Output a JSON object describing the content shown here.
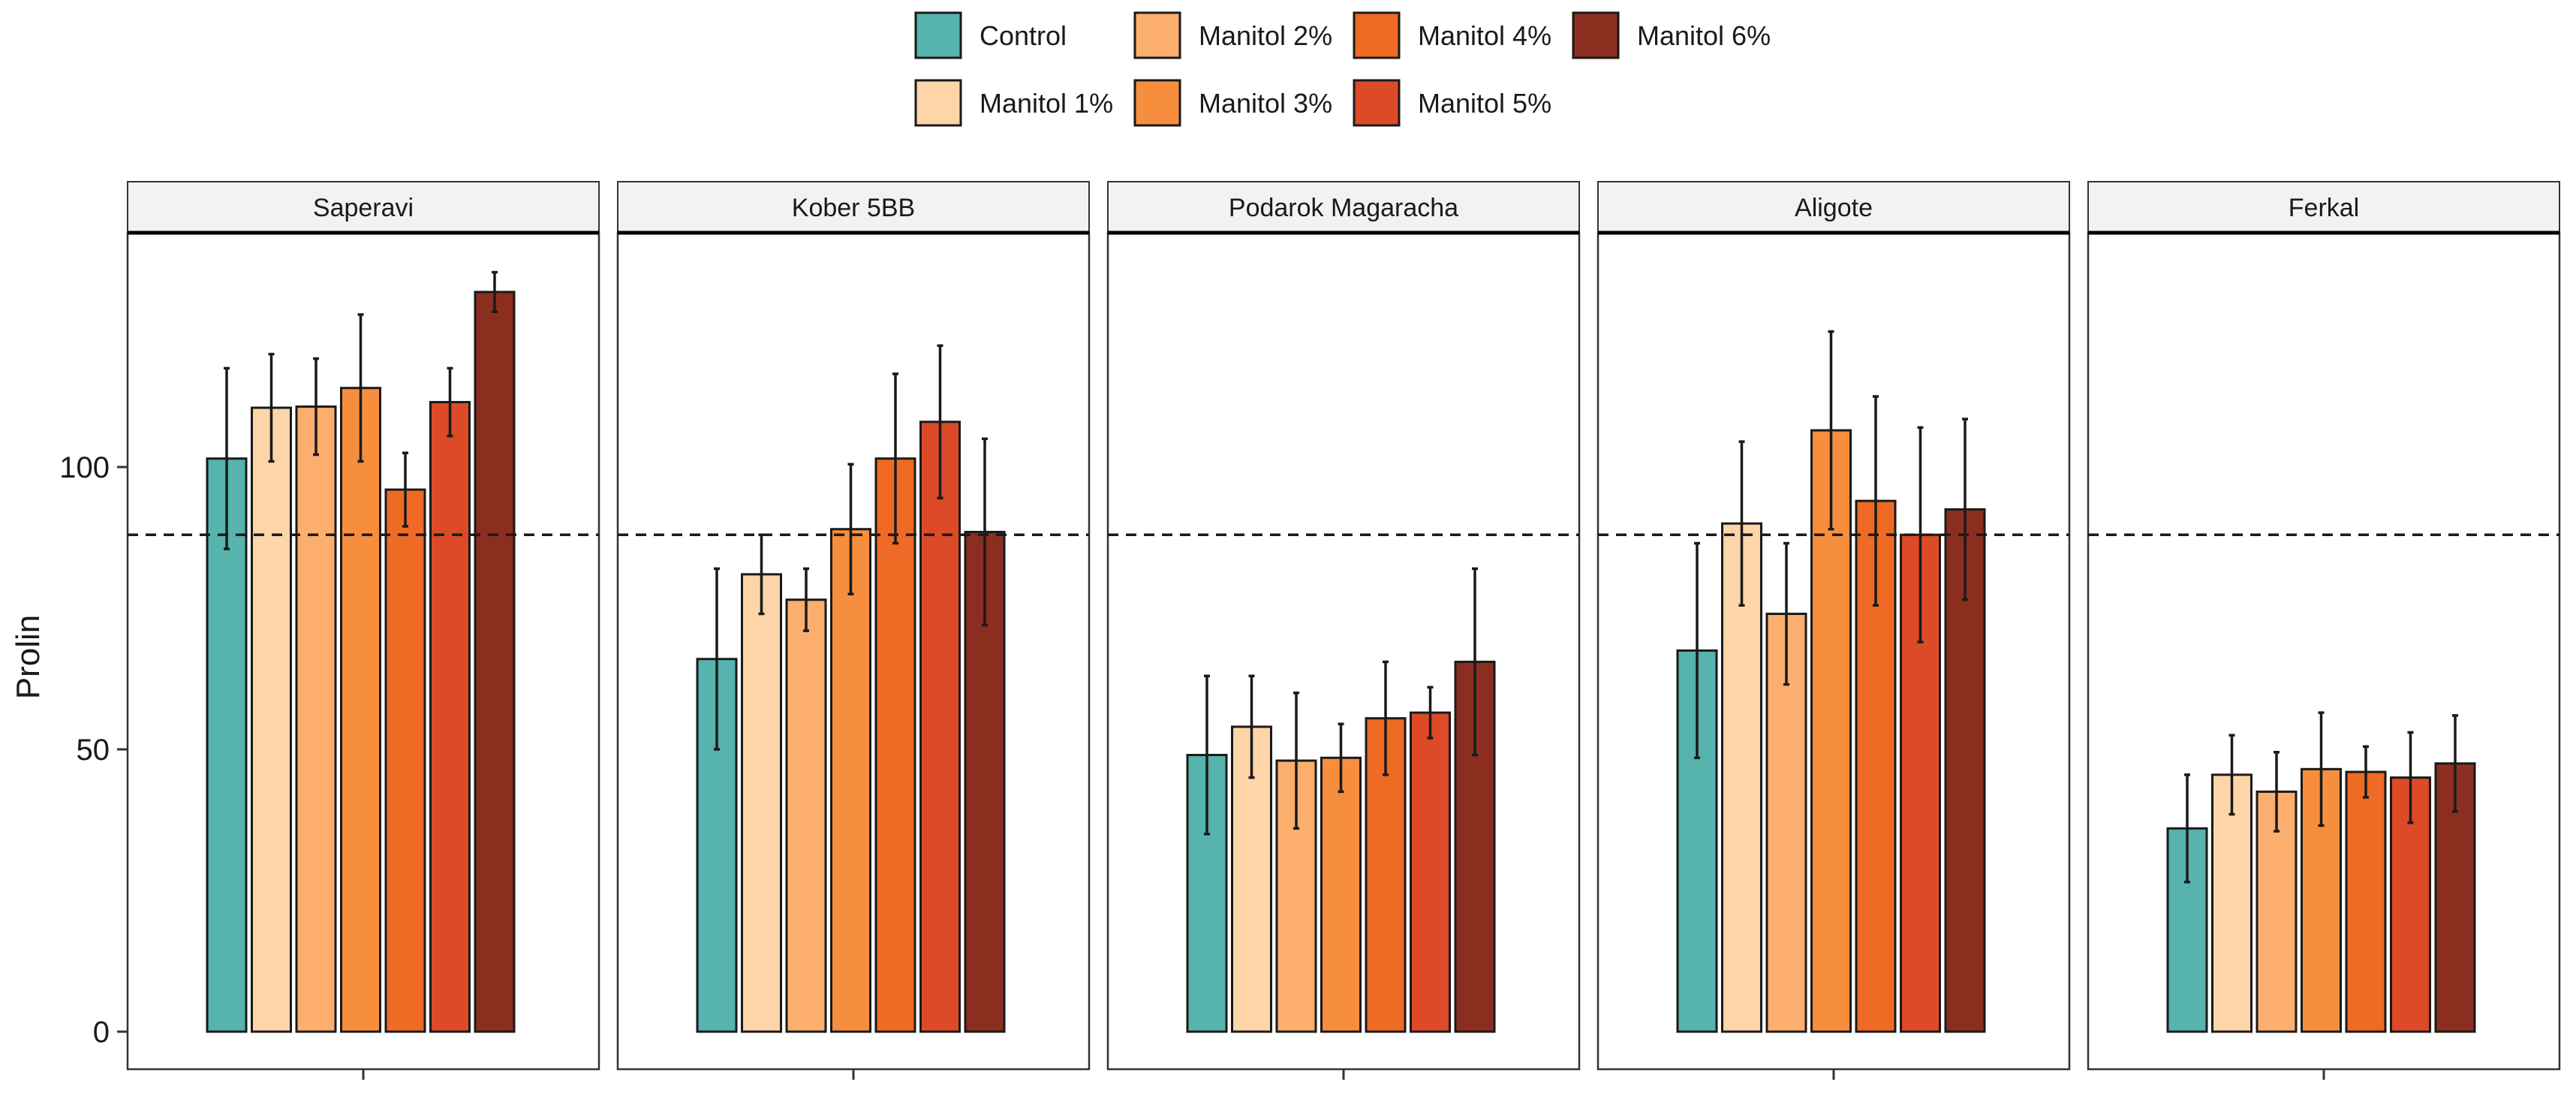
{
  "chart_data": {
    "type": "bar",
    "ylabel": "Prolin",
    "ylim": [
      0,
      145
    ],
    "yticks": [
      0,
      50,
      100
    ],
    "reference_line": 88,
    "legend_position": "top",
    "grid": false,
    "series": [
      {
        "name": "Control",
        "color": "#56B3AD"
      },
      {
        "name": "Manitol 1%",
        "color": "#FDD5A8"
      },
      {
        "name": "Manitol 2%",
        "color": "#FBAE6E"
      },
      {
        "name": "Manitol 3%",
        "color": "#F78E3E"
      },
      {
        "name": "Manitol 4%",
        "color": "#EF6A24"
      },
      {
        "name": "Manitol 5%",
        "color": "#DC4A27"
      },
      {
        "name": "Manitol 6%",
        "color": "#8B2E1F"
      }
    ],
    "panels": [
      {
        "name": "Saperavi",
        "values": [
          101.5,
          110.5,
          110.7,
          114.0,
          96.0,
          111.5,
          131.0
        ],
        "errors": [
          16,
          9.5,
          8.5,
          13,
          6.5,
          6.0,
          3.5
        ]
      },
      {
        "name": "Kober 5BB",
        "values": [
          66.0,
          81.0,
          76.5,
          89.0,
          101.5,
          108.0,
          88.5
        ],
        "errors": [
          16,
          7.0,
          5.5,
          11.5,
          15.0,
          13.5,
          16.5
        ]
      },
      {
        "name": "Podarok Magaracha",
        "values": [
          49.0,
          54.0,
          48.0,
          48.5,
          55.5,
          56.5,
          65.5
        ],
        "errors": [
          14,
          9.0,
          12.0,
          6.0,
          10.0,
          4.5,
          16.5
        ]
      },
      {
        "name": "Aligote",
        "values": [
          67.5,
          90.0,
          74.0,
          106.5,
          94.0,
          88.0,
          92.5
        ],
        "errors": [
          19,
          14.5,
          12.5,
          17.5,
          18.5,
          19.0,
          16.0
        ]
      },
      {
        "name": "Ferkal",
        "values": [
          36.0,
          45.5,
          42.5,
          46.5,
          46.0,
          45.0,
          47.5
        ],
        "errors": [
          9.5,
          7.0,
          7.0,
          10.0,
          4.5,
          8.0,
          8.5
        ]
      }
    ]
  }
}
